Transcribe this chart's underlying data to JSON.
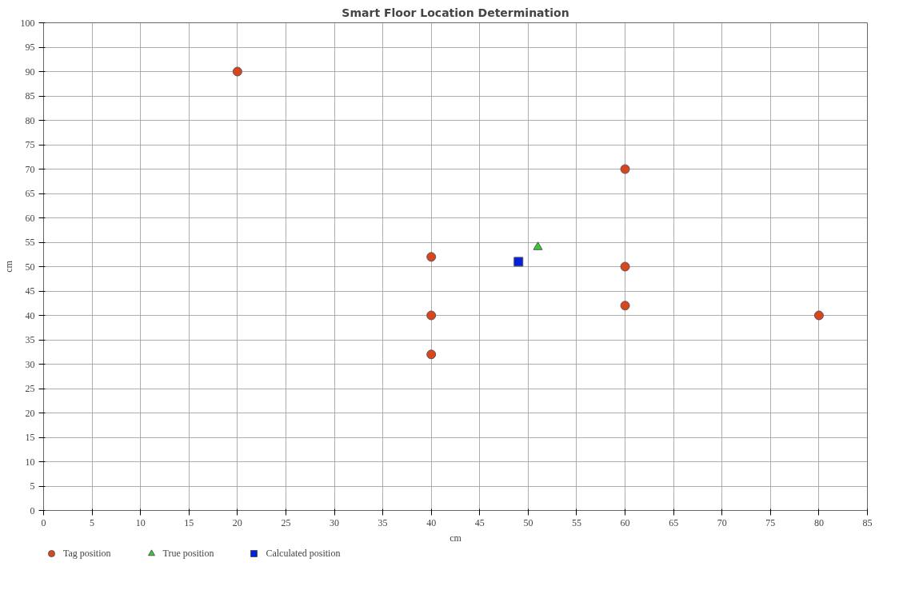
{
  "chart_data": {
    "type": "scatter",
    "title": "Smart Floor Location Determination",
    "xlabel": "cm",
    "ylabel": "cm",
    "xlim": [
      0,
      85
    ],
    "ylim": [
      0,
      100
    ],
    "xticks": [
      0,
      5,
      10,
      15,
      20,
      25,
      30,
      35,
      40,
      45,
      50,
      55,
      60,
      65,
      70,
      75,
      80,
      85
    ],
    "yticks": [
      0,
      5,
      10,
      15,
      20,
      25,
      30,
      35,
      40,
      45,
      50,
      55,
      60,
      65,
      70,
      75,
      80,
      85,
      90,
      95,
      100
    ],
    "grid": true,
    "legend": "bottom left",
    "series": [
      {
        "name": "Tag position",
        "color": "#d9461e",
        "marker": "circle",
        "x": [
          20,
          40,
          40,
          40,
          60,
          60,
          60,
          80
        ],
        "values": [
          90,
          52,
          40,
          32,
          70,
          50,
          42,
          40
        ]
      },
      {
        "name": "True position",
        "color": "#33cc33",
        "marker": "triangle",
        "x": [
          51
        ],
        "values": [
          54
        ]
      },
      {
        "name": "Calculated position",
        "color": "#0022dd",
        "marker": "square",
        "x": [
          49
        ],
        "values": [
          51
        ]
      }
    ]
  }
}
